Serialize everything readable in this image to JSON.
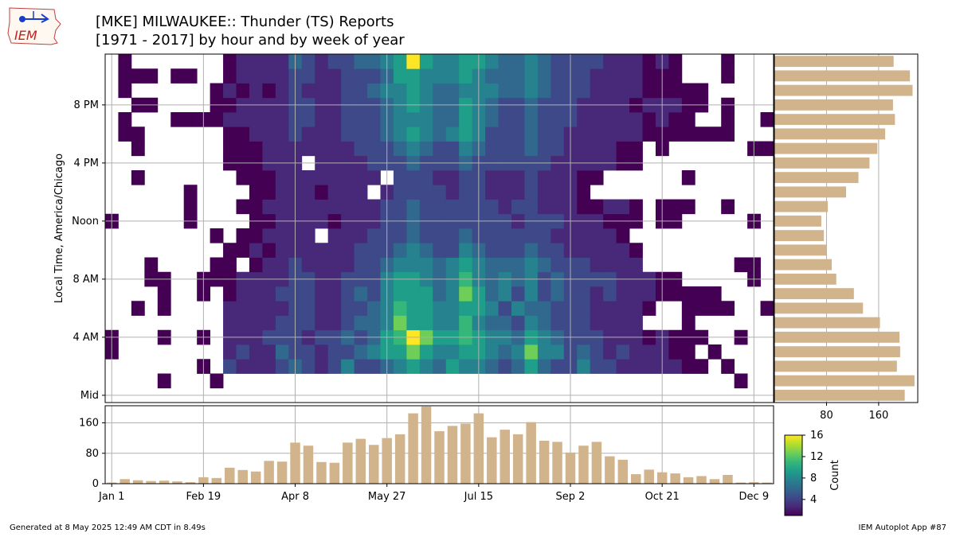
{
  "title": {
    "line1": "[MKE] MILWAUKEE:: Thunder (TS) Reports",
    "line2": "[1971 - 2017] by hour and by week of year"
  },
  "logo_text": "IEM",
  "footer": {
    "left": "Generated at 8 May 2025 12:49 AM CDT in 8.49s",
    "right": "IEM Autoplot App #87"
  },
  "colors": {
    "bar": "#d2b48c",
    "grid": "#b0b0b0",
    "viridis": [
      "#440154",
      "#482878",
      "#3e4989",
      "#31688e",
      "#26828e",
      "#1f9e89",
      "#35b779",
      "#6ece58",
      "#b5de2b",
      "#fde725"
    ]
  },
  "chart_data": {
    "type": "heatmap",
    "ylabel": "Local Time, America/Chicago",
    "y_ticks": [
      {
        "hour": 0,
        "label": "Mid"
      },
      {
        "hour": 4,
        "label": "4 AM"
      },
      {
        "hour": 8,
        "label": "8 AM"
      },
      {
        "hour": 12,
        "label": "Noon"
      },
      {
        "hour": 16,
        "label": "4 PM"
      },
      {
        "hour": 20,
        "label": "8 PM"
      }
    ],
    "x_ticks": [
      {
        "week": 0,
        "label": "Jan 1"
      },
      {
        "week": 7,
        "label": "Feb 19"
      },
      {
        "week": 14,
        "label": "Apr 8"
      },
      {
        "week": 21,
        "label": "May 27"
      },
      {
        "week": 28,
        "label": "Jul 15"
      },
      {
        "week": 35,
        "label": "Sep 2"
      },
      {
        "week": 42,
        "label": "Oct 21"
      },
      {
        "week": 49,
        "label": "Dec 9"
      }
    ],
    "weeks": 51,
    "hours": 24,
    "colorbar": {
      "label": "Count",
      "min": 1,
      "max": 16,
      "ticks": [
        4,
        8,
        12,
        16
      ]
    },
    "weekly_totals": {
      "ylim": [
        0,
        205
      ],
      "ticks": [
        0,
        80,
        160
      ],
      "values": [
        3,
        12,
        9,
        7,
        8,
        6,
        4,
        17,
        15,
        42,
        36,
        32,
        60,
        58,
        108,
        100,
        57,
        55,
        108,
        118,
        102,
        120,
        130,
        185,
        203,
        138,
        152,
        158,
        185,
        122,
        142,
        130,
        162,
        113,
        110,
        82,
        100,
        110,
        72,
        63,
        25,
        37,
        30,
        27,
        17,
        20,
        12,
        23,
        3,
        4,
        3
      ]
    },
    "hourly_totals": {
      "xlim": [
        0,
        220
      ],
      "ticks": [
        80,
        160
      ],
      "values": [
        200,
        215,
        188,
        193,
        192,
        162,
        136,
        122,
        95,
        88,
        80,
        76,
        72,
        82,
        110,
        129,
        146,
        158,
        170,
        185,
        182,
        212,
        208,
        183
      ]
    },
    "cells": [
      [
        0,
        0,
        0,
        0,
        0,
        0,
        0,
        0,
        0,
        0,
        0,
        0,
        0,
        0,
        0,
        0,
        0,
        0,
        0,
        0,
        0,
        0,
        0,
        0,
        0,
        0,
        0,
        0,
        0,
        0,
        0,
        0,
        0,
        0,
        0,
        0,
        0,
        0,
        0,
        0,
        0,
        0,
        0,
        0,
        0,
        0,
        0,
        0,
        0,
        0,
        0
      ],
      [
        0,
        0,
        0,
        0,
        1,
        0,
        0,
        0,
        1,
        0,
        0,
        0,
        0,
        0,
        0,
        0,
        0,
        0,
        0,
        0,
        0,
        0,
        0,
        0,
        0,
        0,
        0,
        0,
        0,
        0,
        0,
        0,
        0,
        0,
        0,
        0,
        0,
        0,
        0,
        0,
        0,
        0,
        0,
        0,
        0,
        0,
        0,
        0,
        1,
        0,
        0
      ],
      [
        0,
        0,
        0,
        0,
        0,
        0,
        0,
        1,
        0,
        4,
        2,
        3,
        3,
        5,
        6,
        4,
        3,
        5,
        7,
        5,
        5,
        6,
        8,
        10,
        8,
        6,
        9,
        8,
        8,
        6,
        5,
        6,
        9,
        6,
        5,
        4,
        7,
        5,
        4,
        3,
        3,
        2,
        2,
        2,
        1,
        1,
        0,
        1,
        0,
        0,
        0
      ],
      [
        1,
        0,
        0,
        0,
        0,
        0,
        0,
        0,
        0,
        3,
        4,
        2,
        3,
        6,
        5,
        4,
        3,
        5,
        5,
        6,
        7,
        9,
        10,
        12,
        10,
        7,
        8,
        9,
        10,
        7,
        6,
        7,
        13,
        8,
        7,
        5,
        6,
        5,
        3,
        4,
        2,
        2,
        2,
        1,
        1,
        0,
        1,
        0,
        0,
        0,
        0
      ],
      [
        1,
        0,
        0,
        0,
        1,
        0,
        0,
        1,
        0,
        2,
        3,
        2,
        4,
        5,
        4,
        3,
        4,
        4,
        6,
        5,
        6,
        9,
        11,
        16,
        12,
        9,
        9,
        11,
        9,
        7,
        7,
        6,
        9,
        7,
        6,
        4,
        5,
        4,
        3,
        3,
        2,
        1,
        2,
        1,
        1,
        1,
        0,
        0,
        1,
        0,
        0
      ],
      [
        0,
        0,
        0,
        0,
        0,
        0,
        0,
        0,
        0,
        2,
        2,
        3,
        2,
        4,
        5,
        4,
        3,
        3,
        5,
        6,
        6,
        8,
        12,
        10,
        9,
        7,
        8,
        11,
        8,
        6,
        6,
        5,
        7,
        6,
        5,
        4,
        4,
        3,
        3,
        2,
        2,
        0,
        0,
        0,
        1,
        0,
        0,
        0,
        0,
        0,
        0
      ],
      [
        0,
        0,
        1,
        0,
        1,
        0,
        0,
        0,
        0,
        2,
        2,
        3,
        2,
        3,
        4,
        4,
        3,
        3,
        4,
        5,
        6,
        7,
        11,
        9,
        10,
        8,
        7,
        10,
        9,
        7,
        5,
        7,
        6,
        6,
        5,
        4,
        5,
        3,
        3,
        2,
        2,
        1,
        0,
        0,
        1,
        1,
        1,
        1,
        0,
        0,
        1
      ],
      [
        0,
        0,
        0,
        0,
        1,
        0,
        0,
        1,
        0,
        1,
        2,
        2,
        3,
        4,
        5,
        5,
        3,
        3,
        4,
        6,
        5,
        7,
        10,
        9,
        10,
        6,
        8,
        12,
        9,
        6,
        7,
        5,
        7,
        5,
        6,
        4,
        4,
        3,
        4,
        3,
        2,
        2,
        1,
        1,
        1,
        1,
        1,
        0,
        0,
        0,
        0
      ],
      [
        0,
        0,
        0,
        1,
        1,
        0,
        0,
        1,
        1,
        1,
        2,
        2,
        3,
        3,
        4,
        4,
        3,
        3,
        4,
        5,
        5,
        7,
        9,
        9,
        8,
        6,
        7,
        11,
        8,
        6,
        7,
        6,
        8,
        5,
        6,
        5,
        4,
        4,
        4,
        3,
        2,
        2,
        1,
        1,
        0,
        0,
        0,
        0,
        0,
        1,
        0
      ],
      [
        0,
        0,
        0,
        1,
        0,
        0,
        0,
        0,
        1,
        1,
        0,
        1,
        2,
        3,
        4,
        3,
        2,
        3,
        3,
        4,
        5,
        6,
        7,
        8,
        7,
        6,
        7,
        9,
        7,
        6,
        6,
        6,
        7,
        6,
        5,
        4,
        4,
        3,
        3,
        2,
        2,
        0,
        0,
        0,
        0,
        0,
        0,
        0,
        1,
        1,
        0
      ],
      [
        0,
        0,
        0,
        0,
        0,
        0,
        0,
        0,
        0,
        1,
        1,
        2,
        1,
        2,
        3,
        3,
        2,
        3,
        3,
        4,
        4,
        5,
        6,
        7,
        6,
        5,
        5,
        7,
        6,
        5,
        4,
        5,
        6,
        5,
        4,
        3,
        3,
        3,
        2,
        2,
        1,
        0,
        0,
        0,
        0,
        0,
        0,
        0,
        0,
        0,
        0
      ],
      [
        0,
        0,
        0,
        0,
        0,
        0,
        0,
        0,
        1,
        0,
        1,
        1,
        2,
        2,
        3,
        2,
        0,
        2,
        3,
        3,
        4,
        4,
        5,
        6,
        5,
        4,
        5,
        6,
        5,
        4,
        4,
        4,
        5,
        4,
        3,
        3,
        2,
        2,
        2,
        1,
        0,
        0,
        0,
        0,
        0,
        0,
        0,
        0,
        0,
        0,
        0
      ],
      [
        1,
        0,
        0,
        0,
        0,
        0,
        1,
        0,
        0,
        0,
        0,
        1,
        1,
        2,
        2,
        2,
        2,
        1,
        3,
        3,
        3,
        4,
        5,
        6,
        5,
        4,
        4,
        5,
        5,
        4,
        4,
        3,
        5,
        4,
        4,
        3,
        2,
        2,
        1,
        1,
        1,
        0,
        1,
        1,
        0,
        0,
        0,
        0,
        0,
        1,
        0
      ],
      [
        0,
        0,
        0,
        0,
        0,
        0,
        1,
        0,
        0,
        0,
        1,
        1,
        2,
        2,
        3,
        2,
        2,
        2,
        2,
        3,
        3,
        4,
        5,
        6,
        5,
        4,
        4,
        5,
        4,
        4,
        3,
        4,
        4,
        3,
        3,
        2,
        1,
        1,
        2,
        2,
        1,
        0,
        1,
        1,
        1,
        0,
        0,
        1,
        0,
        0,
        0
      ],
      [
        0,
        0,
        0,
        0,
        0,
        0,
        1,
        0,
        0,
        0,
        0,
        1,
        1,
        2,
        2,
        2,
        1,
        2,
        2,
        3,
        0,
        3,
        4,
        5,
        4,
        4,
        3,
        5,
        4,
        3,
        3,
        3,
        4,
        3,
        2,
        2,
        1,
        0,
        0,
        0,
        0,
        0,
        0,
        0,
        0,
        0,
        0,
        0,
        0,
        0,
        0
      ],
      [
        0,
        0,
        1,
        0,
        0,
        0,
        0,
        0,
        0,
        0,
        1,
        1,
        1,
        2,
        2,
        2,
        2,
        2,
        2,
        3,
        3,
        0,
        4,
        5,
        4,
        3,
        3,
        4,
        4,
        3,
        3,
        3,
        4,
        3,
        2,
        2,
        1,
        1,
        0,
        0,
        0,
        0,
        0,
        0,
        1,
        0,
        0,
        0,
        0,
        0,
        0
      ],
      [
        0,
        0,
        0,
        0,
        0,
        0,
        0,
        0,
        0,
        1,
        1,
        1,
        2,
        2,
        3,
        0,
        2,
        2,
        3,
        3,
        4,
        4,
        5,
        6,
        5,
        4,
        4,
        6,
        5,
        4,
        4,
        4,
        5,
        4,
        3,
        3,
        2,
        2,
        2,
        1,
        1,
        0,
        0,
        0,
        0,
        0,
        0,
        0,
        0,
        0,
        0
      ],
      [
        0,
        0,
        1,
        0,
        0,
        0,
        0,
        0,
        0,
        1,
        1,
        1,
        2,
        3,
        3,
        3,
        2,
        3,
        3,
        4,
        4,
        5,
        6,
        7,
        6,
        5,
        5,
        7,
        6,
        5,
        5,
        4,
        6,
        5,
        4,
        3,
        3,
        2,
        2,
        1,
        1,
        0,
        1,
        0,
        0,
        0,
        0,
        0,
        0,
        1,
        1
      ],
      [
        0,
        1,
        1,
        0,
        0,
        0,
        0,
        0,
        0,
        1,
        1,
        2,
        2,
        3,
        4,
        3,
        3,
        3,
        4,
        4,
        5,
        6,
        8,
        9,
        8,
        6,
        7,
        9,
        7,
        5,
        5,
        5,
        6,
        5,
        4,
        3,
        3,
        3,
        2,
        2,
        2,
        1,
        1,
        1,
        1,
        1,
        1,
        1,
        0,
        0,
        0
      ],
      [
        0,
        1,
        0,
        0,
        0,
        1,
        1,
        1,
        1,
        2,
        2,
        2,
        3,
        3,
        4,
        4,
        3,
        3,
        4,
        5,
        5,
        6,
        7,
        8,
        7,
        6,
        6,
        10,
        8,
        6,
        5,
        5,
        6,
        5,
        4,
        4,
        3,
        3,
        2,
        2,
        2,
        1,
        2,
        1,
        1,
        0,
        0,
        1,
        0,
        0,
        1
      ],
      [
        0,
        0,
        1,
        1,
        0,
        0,
        0,
        0,
        1,
        1,
        2,
        2,
        2,
        3,
        4,
        4,
        3,
        3,
        4,
        5,
        5,
        6,
        8,
        9,
        7,
        6,
        6,
        9,
        7,
        6,
        5,
        5,
        6,
        5,
        4,
        4,
        3,
        3,
        2,
        2,
        1,
        2,
        2,
        2,
        1,
        1,
        0,
        1,
        0,
        0,
        0
      ],
      [
        0,
        1,
        0,
        0,
        0,
        0,
        0,
        0,
        1,
        2,
        1,
        2,
        1,
        2,
        4,
        3,
        3,
        3,
        4,
        5,
        6,
        7,
        8,
        10,
        8,
        6,
        6,
        8,
        7,
        7,
        6,
        6,
        8,
        6,
        5,
        5,
        4,
        3,
        3,
        2,
        2,
        1,
        1,
        1,
        1,
        1,
        0,
        0,
        0,
        0,
        0
      ],
      [
        0,
        1,
        1,
        1,
        0,
        1,
        1,
        0,
        0,
        1,
        2,
        2,
        2,
        3,
        5,
        4,
        3,
        3,
        4,
        5,
        5,
        6,
        9,
        10,
        8,
        7,
        7,
        9,
        7,
        6,
        6,
        6,
        7,
        6,
        5,
        4,
        4,
        3,
        3,
        2,
        2,
        1,
        1,
        1,
        0,
        0,
        0,
        1,
        0,
        0,
        0
      ],
      [
        0,
        1,
        0,
        0,
        0,
        0,
        0,
        0,
        0,
        1,
        2,
        2,
        3,
        3,
        6,
        4,
        3,
        4,
        5,
        6,
        6,
        8,
        10,
        16,
        9,
        7,
        8,
        10,
        9,
        7,
        6,
        6,
        8,
        6,
        5,
        4,
        4,
        4,
        3,
        3,
        2,
        1,
        2,
        1,
        0,
        0,
        0,
        1,
        0,
        0,
        0
      ]
    ]
  }
}
